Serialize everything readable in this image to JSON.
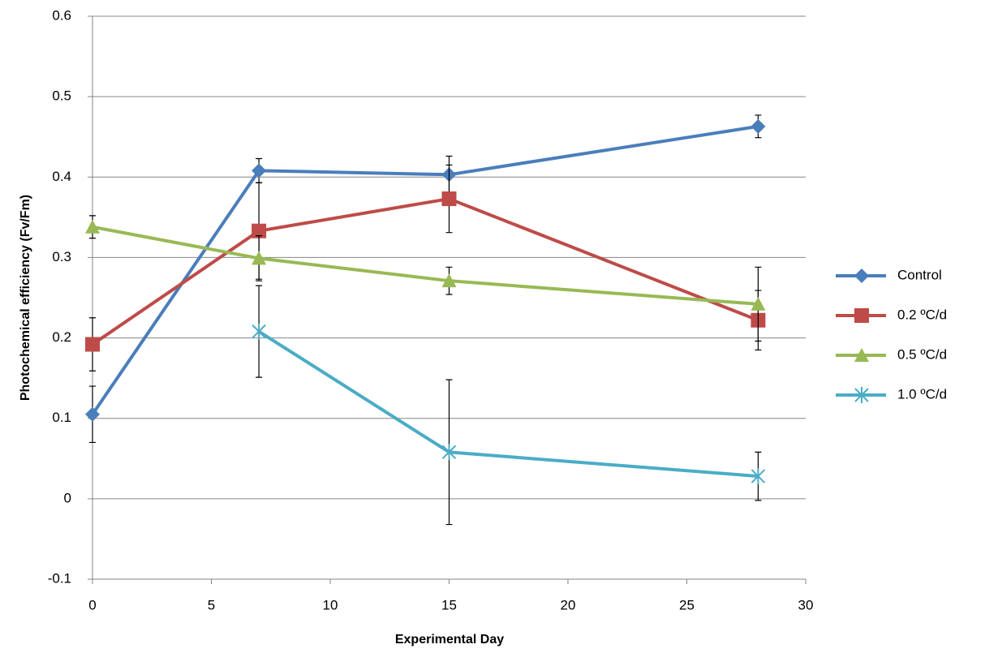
{
  "chart_data": {
    "type": "line",
    "x_label": "Experimental Day",
    "y_label": "Photochemical efficiency (Fv/Fm)",
    "x": [
      0,
      7,
      15,
      28
    ],
    "series": [
      {
        "name": "Control",
        "color": "#4a7ebb",
        "marker": "diamond",
        "values": [
          0.105,
          0.408,
          0.403,
          0.463
        ],
        "errors": [
          0.035,
          0.015,
          0.023,
          0.014
        ]
      },
      {
        "name": "0.2 ºC/d",
        "color": "#be4b48",
        "marker": "square",
        "values": [
          0.192,
          0.333,
          0.373,
          0.222
        ],
        "errors": [
          0.033,
          0.06,
          0.042,
          0.037
        ]
      },
      {
        "name": "0.5 ºC/d",
        "color": "#98b954",
        "marker": "triangle",
        "values": [
          0.338,
          0.299,
          0.271,
          0.242
        ],
        "errors": [
          0.014,
          0.028,
          0.017,
          0.046
        ]
      },
      {
        "name": "1.0 ºC/d",
        "color": "#4bacc6",
        "marker": "star",
        "values": [
          null,
          0.208,
          0.058,
          0.028
        ],
        "errors": [
          null,
          0.057,
          0.09,
          0.03
        ]
      }
    ],
    "xlim": [
      0,
      30
    ],
    "xticks": [
      0,
      5,
      10,
      15,
      20,
      25,
      30
    ],
    "ylim": [
      -0.1,
      0.6
    ],
    "yticks": [
      -0.1,
      0,
      0.1,
      0.2,
      0.3,
      0.4,
      0.5,
      0.6
    ],
    "grid": true,
    "legend": "right"
  }
}
